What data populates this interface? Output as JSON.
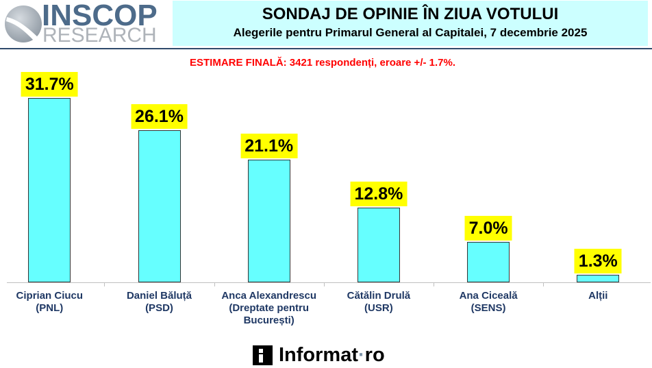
{
  "logo": {
    "icon": "inscop-swoosh-icon",
    "name": "INSCOP",
    "tagline": "RESEARCH"
  },
  "chart_data": {
    "type": "bar",
    "title": "SONDAJ DE OPINIE ÎN ZIUA VOTULUI",
    "subtitle": "Alegerile pentru Primarul General al Capitalei, 7 decembrie 2025",
    "annotation": "ESTIMARE FINALĂ: 3421 respondenți, eroare +/- 1.7%.",
    "categories": [
      "Ciprian Ciucu\n(PNL)",
      "Daniel Băluță\n(PSD)",
      "Anca Alexandrescu\n(Dreptate pentru\nBucurești)",
      "Cătălin Drulă\n(USR)",
      "Ana Ciceală\n(SENS)",
      "Alții"
    ],
    "values": [
      31.7,
      26.1,
      21.1,
      12.8,
      7.0,
      1.3
    ],
    "value_labels": [
      "31.7%",
      "26.1%",
      "21.1%",
      "12.8%",
      "7.0%",
      "1.3%"
    ],
    "xlabel": "",
    "ylabel": "",
    "grid": false
  },
  "footer": {
    "icon": "informat-i-icon",
    "brand": "Informat",
    "separator": "·",
    "tld": "ro"
  },
  "colors": {
    "header_bg": "#CCFFFF",
    "rule": "#2E4A6B",
    "annotation": "#FF0000",
    "bar_fill": "#66FFFF",
    "bar_border": "#333333",
    "label_bg": "#FFFF00",
    "axis": "#BFBFBF",
    "category_text": "#1F3864",
    "logo_primary": "#4D6B8A",
    "logo_secondary": "#AEB3B9",
    "footer_dot": "#7D93A8"
  }
}
